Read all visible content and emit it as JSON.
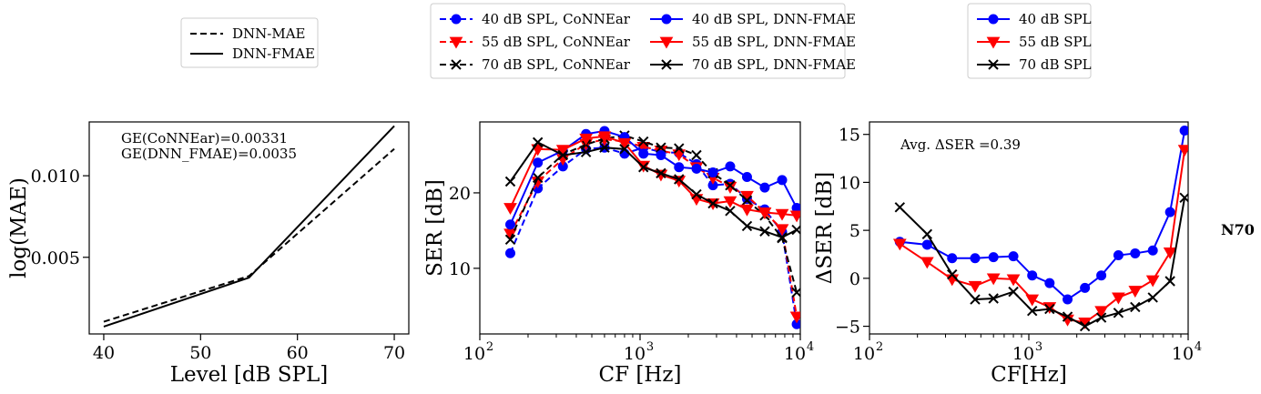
{
  "side_label": "N70",
  "colors": {
    "blue": "#0000ff",
    "red": "#ff0000",
    "black": "#000000"
  },
  "chart_data": [
    {
      "type": "line",
      "legend": [
        {
          "label": "DNN-MAE",
          "style": "dashed"
        },
        {
          "label": "DNN-FMAE",
          "style": "solid"
        }
      ],
      "legend_position": "top",
      "annotations": [
        "GE(CoNNEar)=0.00331",
        "GE(DNN_FMAE)=0.0035"
      ],
      "xlabel": "Level [dB SPL]",
      "ylabel": "log(MAE)",
      "x": [
        40,
        55,
        70
      ],
      "xlim": [
        38.5,
        71.5
      ],
      "ylim": [
        0.0003,
        0.0133
      ],
      "xticks": [
        {
          "value": 40,
          "label": "40"
        },
        {
          "value": 50,
          "label": "50"
        },
        {
          "value": 60,
          "label": "60"
        },
        {
          "value": 70,
          "label": "70"
        }
      ],
      "yticks": [
        {
          "value": 0.005,
          "label": "0.005"
        },
        {
          "value": 0.01,
          "label": "0.010"
        }
      ],
      "series": [
        {
          "name": "DNN-MAE",
          "color": "#000000",
          "dash": true,
          "values": [
            0.00105,
            0.00385,
            0.01165
          ]
        },
        {
          "name": "DNN-FMAE",
          "color": "#000000",
          "dash": false,
          "values": [
            0.00075,
            0.00375,
            0.01305
          ]
        }
      ]
    },
    {
      "type": "line",
      "log_x": true,
      "legend": [
        {
          "label": "40 dB SPL, CoNNEar",
          "color": "#0000ff",
          "marker": "circle",
          "style": "dashed"
        },
        {
          "label": "55 dB SPL, CoNNEar",
          "color": "#ff0000",
          "marker": "triangle-down",
          "style": "dashed"
        },
        {
          "label": "70 dB SPL, CoNNEar",
          "color": "#000000",
          "marker": "x",
          "style": "dashed"
        },
        {
          "label": "40 dB SPL, DNN-FMAE",
          "color": "#0000ff",
          "marker": "circle",
          "style": "solid"
        },
        {
          "label": "55 dB SPL, DNN-FMAE",
          "color": "#ff0000",
          "marker": "triangle-down",
          "style": "solid"
        },
        {
          "label": "70 dB SPL, DNN-FMAE",
          "color": "#000000",
          "marker": "x",
          "style": "solid"
        }
      ],
      "legend_position": "top",
      "xlabel": "CF [Hz]",
      "ylabel": "SER [dB]",
      "xlim": [
        100,
        10000
      ],
      "ylim": [
        1.3,
        29.4
      ],
      "xticks": [
        {
          "value": 100,
          "base": "10",
          "exp": "2"
        },
        {
          "value": 1000,
          "base": "10",
          "exp": "3"
        },
        {
          "value": 10000,
          "base": "10",
          "exp": "4"
        }
      ],
      "yticks": [
        {
          "value": 10,
          "label": "10"
        },
        {
          "value": 20,
          "label": "20"
        }
      ],
      "x": [
        155,
        230,
        330,
        460,
        600,
        800,
        1050,
        1350,
        1750,
        2250,
        2850,
        3650,
        4650,
        6000,
        7700,
        9500
      ],
      "series": [
        {
          "name": "40 dB SPL, CoNNEar",
          "color": "#0000ff",
          "marker": "circle",
          "dash": true,
          "values": [
            12.0,
            20.6,
            23.5,
            25.8,
            26.0,
            25.2,
            26.0,
            25.4,
            25.3,
            23.8,
            21.0,
            21.2,
            19.2,
            17.8,
            14.8,
            2.6
          ]
        },
        {
          "name": "55 dB SPL, CoNNEar",
          "color": "#ff0000",
          "marker": "triangle-down",
          "dash": true,
          "values": [
            14.6,
            21.5,
            24.5,
            26.5,
            27.1,
            26.8,
            26.1,
            25.6,
            25.1,
            23.4,
            22.0,
            20.8,
            19.6,
            17.4,
            15.2,
            3.6
          ]
        },
        {
          "name": "70 dB SPL, CoNNEar",
          "color": "#000000",
          "marker": "x",
          "dash": true,
          "values": [
            13.8,
            22.0,
            25.1,
            26.4,
            27.2,
            27.6,
            26.8,
            26.0,
            25.9,
            25.0,
            22.6,
            21.0,
            19.0,
            17.0,
            14.0,
            6.8
          ]
        },
        {
          "name": "40 dB SPL, DNN-FMAE",
          "color": "#0000ff",
          "marker": "circle",
          "dash": false,
          "values": [
            15.8,
            24.0,
            25.6,
            27.8,
            28.2,
            27.4,
            25.2,
            25.0,
            23.4,
            23.2,
            22.7,
            23.5,
            22.1,
            20.7,
            21.7,
            18.0
          ]
        },
        {
          "name": "55 dB SPL, DNN-FMAE",
          "color": "#ff0000",
          "marker": "triangle-down",
          "dash": false,
          "values": [
            18.0,
            25.8,
            25.7,
            27.2,
            27.5,
            26.6,
            23.6,
            22.4,
            21.6,
            19.2,
            18.6,
            18.9,
            17.8,
            17.4,
            17.2,
            17.0
          ]
        },
        {
          "name": "70 dB SPL, DNN-FMAE",
          "color": "#000000",
          "marker": "x",
          "dash": false,
          "values": [
            21.5,
            26.7,
            25.0,
            25.4,
            26.0,
            25.8,
            23.4,
            22.6,
            21.8,
            19.8,
            18.6,
            17.6,
            15.6,
            14.9,
            14.1,
            15.1
          ]
        }
      ]
    },
    {
      "type": "line",
      "log_x": true,
      "legend": [
        {
          "label": "40 dB SPL",
          "color": "#0000ff",
          "marker": "circle",
          "style": "solid"
        },
        {
          "label": "55 dB SPL",
          "color": "#ff0000",
          "marker": "triangle-down",
          "style": "solid"
        },
        {
          "label": "70 dB SPL",
          "color": "#000000",
          "marker": "x",
          "style": "solid"
        }
      ],
      "legend_position": "top",
      "annotations": [
        "Avg. ΔSER =0.39"
      ],
      "xlabel": "CF[Hz]",
      "ylabel": "ΔSER [dB]",
      "xlim": [
        100,
        10000
      ],
      "ylim": [
        -5.8,
        16.3
      ],
      "xticks": [
        {
          "value": 100,
          "base": "10",
          "exp": "2"
        },
        {
          "value": 1000,
          "base": "10",
          "exp": "3"
        },
        {
          "value": 10000,
          "base": "10",
          "exp": "4"
        }
      ],
      "yticks": [
        {
          "value": -5,
          "label": "−5"
        },
        {
          "value": 0,
          "label": "0"
        },
        {
          "value": 5,
          "label": "5"
        },
        {
          "value": 10,
          "label": "10"
        },
        {
          "value": 15,
          "label": "15"
        }
      ],
      "x": [
        155,
        230,
        330,
        460,
        600,
        800,
        1050,
        1350,
        1750,
        2250,
        2850,
        3650,
        4650,
        6000,
        7700,
        9500
      ],
      "series": [
        {
          "name": "40 dB SPL",
          "color": "#0000ff",
          "marker": "circle",
          "dash": false,
          "values": [
            3.8,
            3.5,
            2.1,
            2.1,
            2.2,
            2.3,
            0.3,
            -0.5,
            -2.2,
            -1.0,
            0.3,
            2.4,
            2.6,
            2.9,
            6.9,
            15.4
          ]
        },
        {
          "name": "55 dB SPL",
          "color": "#ff0000",
          "marker": "triangle-down",
          "dash": false,
          "values": [
            3.6,
            1.7,
            -0.1,
            -0.8,
            0.0,
            -0.1,
            -2.2,
            -3.0,
            -4.3,
            -4.6,
            -3.4,
            -2.0,
            -1.3,
            -0.2,
            2.7,
            13.4
          ]
        },
        {
          "name": "70 dB SPL",
          "color": "#000000",
          "marker": "x",
          "dash": false,
          "values": [
            7.4,
            4.6,
            0.4,
            -2.2,
            -2.1,
            -1.4,
            -3.4,
            -3.2,
            -4.0,
            -5.0,
            -4.1,
            -3.6,
            -3.0,
            -2.0,
            -0.3,
            8.4
          ]
        }
      ]
    }
  ]
}
